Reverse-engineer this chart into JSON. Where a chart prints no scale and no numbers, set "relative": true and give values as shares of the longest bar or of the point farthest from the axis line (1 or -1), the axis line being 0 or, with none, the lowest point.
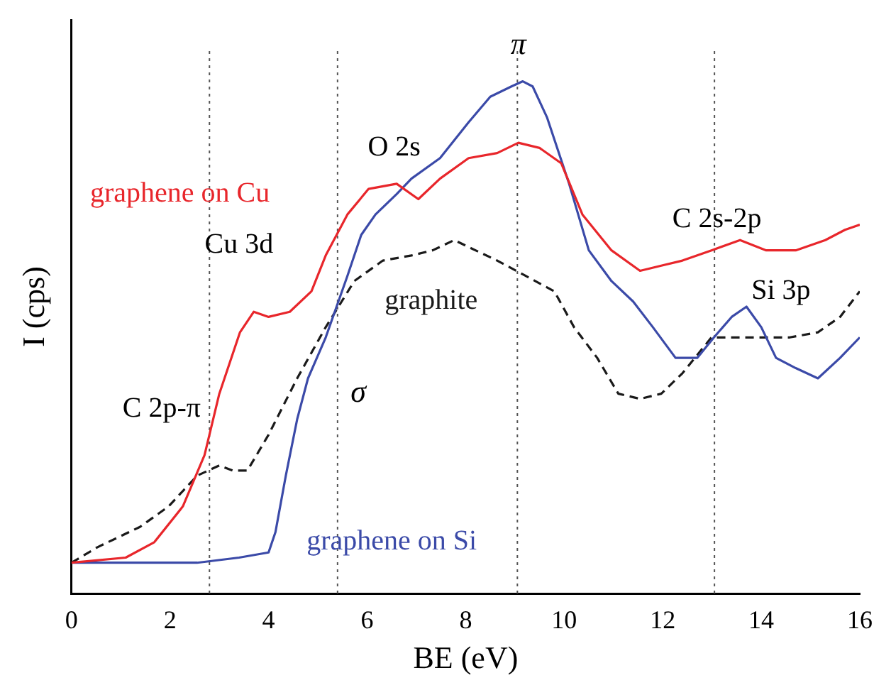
{
  "chart_data": {
    "type": "line",
    "xlabel": "BE (eV)",
    "ylabel": "I (cps)",
    "relative": true,
    "xlim": [
      0,
      16
    ],
    "xticks": [
      0,
      2,
      4,
      6,
      8,
      10,
      12,
      14,
      16
    ],
    "tick_labels": "x",
    "grid": false,
    "legend": false,
    "marker": "none",
    "series": [
      {
        "name": "graphene on Cu",
        "color": "#e8262b",
        "line_style": "solid",
        "x": [
          0,
          1.1,
          1.68,
          2.26,
          2.7,
          3.0,
          3.42,
          3.7,
          4.0,
          4.43,
          4.87,
          5.16,
          5.6,
          6.03,
          6.6,
          7.04,
          7.48,
          8.06,
          8.64,
          9.07,
          9.5,
          9.94,
          10.37,
          10.96,
          11.54,
          11.97,
          12.4,
          12.99,
          13.57,
          14.1,
          14.7,
          15.3,
          15.7,
          16
        ],
        "values": [
          0.06,
          0.07,
          0.1,
          0.17,
          0.27,
          0.39,
          0.51,
          0.55,
          0.54,
          0.55,
          0.59,
          0.66,
          0.74,
          0.79,
          0.8,
          0.77,
          0.81,
          0.85,
          0.86,
          0.88,
          0.87,
          0.84,
          0.74,
          0.67,
          0.63,
          0.64,
          0.65,
          0.67,
          0.69,
          0.67,
          0.67,
          0.69,
          0.71,
          0.72
        ]
      },
      {
        "name": "graphene on Si",
        "color": "#3b4aa8",
        "line_style": "solid",
        "x": [
          0,
          1.1,
          2.55,
          3.4,
          4.0,
          4.14,
          4.35,
          4.58,
          4.8,
          5.16,
          5.6,
          5.88,
          6.17,
          6.6,
          6.9,
          7.48,
          8.06,
          8.5,
          8.93,
          9.16,
          9.36,
          9.65,
          10.1,
          10.5,
          10.96,
          11.4,
          11.8,
          12.26,
          12.7,
          13.04,
          13.4,
          13.7,
          14.0,
          14.3,
          14.7,
          15.15,
          15.6,
          16
        ],
        "values": [
          0.06,
          0.06,
          0.06,
          0.07,
          0.08,
          0.12,
          0.23,
          0.34,
          0.42,
          0.5,
          0.62,
          0.7,
          0.74,
          0.78,
          0.81,
          0.85,
          0.92,
          0.97,
          0.99,
          1.0,
          0.99,
          0.93,
          0.8,
          0.67,
          0.61,
          0.57,
          0.52,
          0.46,
          0.46,
          0.5,
          0.54,
          0.56,
          0.52,
          0.46,
          0.44,
          0.42,
          0.46,
          0.5
        ]
      },
      {
        "name": "graphite",
        "color": "#1a1a1a",
        "line_style": "dashed",
        "x": [
          0,
          0.52,
          1.39,
          1.97,
          2.55,
          3.0,
          3.27,
          3.57,
          4.0,
          4.58,
          5.16,
          5.74,
          6.32,
          6.9,
          7.33,
          7.77,
          8.2,
          8.64,
          9.22,
          9.8,
          10.2,
          10.67,
          11.1,
          11.54,
          11.97,
          12.4,
          12.99,
          13.57,
          14.0,
          14.58,
          15.15,
          15.6,
          16
        ],
        "values": [
          0.06,
          0.09,
          0.13,
          0.17,
          0.23,
          0.25,
          0.24,
          0.24,
          0.31,
          0.42,
          0.52,
          0.61,
          0.65,
          0.66,
          0.67,
          0.69,
          0.67,
          0.65,
          0.62,
          0.59,
          0.52,
          0.46,
          0.39,
          0.38,
          0.39,
          0.43,
          0.5,
          0.5,
          0.5,
          0.5,
          0.51,
          0.54,
          0.59
        ]
      }
    ],
    "ref_lines": [
      {
        "axis": "x",
        "value": 2.8,
        "color": "#555555",
        "line_style": "dotted"
      },
      {
        "axis": "x",
        "value": 5.4,
        "color": "#555555",
        "line_style": "dotted"
      },
      {
        "axis": "x",
        "value": 9.05,
        "color": "#555555",
        "line_style": "dotted"
      },
      {
        "axis": "x",
        "value": 13.05,
        "color": "#555555",
        "line_style": "dotted"
      }
    ],
    "annotations": [
      "π",
      "O 2s",
      "Cu 3d",
      "C 2s-2p",
      "Si 3p",
      "σ",
      "C 2p-π"
    ]
  }
}
